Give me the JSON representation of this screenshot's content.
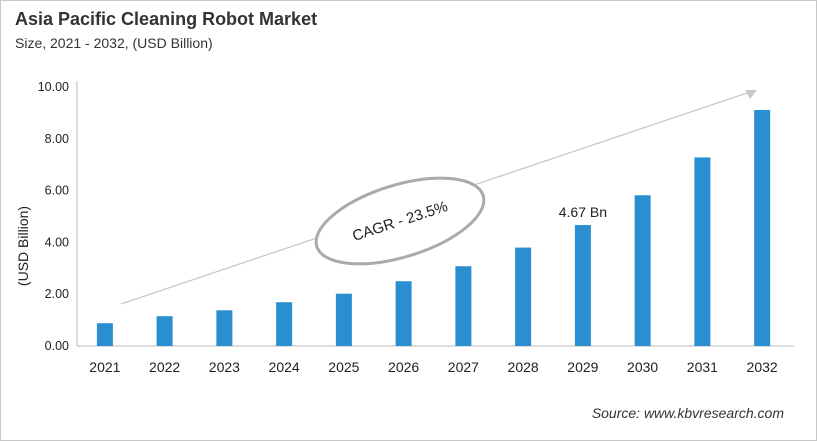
{
  "chart_data": {
    "type": "bar",
    "title": "Asia Pacific Cleaning Robot Market",
    "subtitle": "Size, 2021 - 2032, (USD Billion)",
    "xlabel": "",
    "ylabel": "(USD Billion)",
    "ylim": [
      0,
      10
    ],
    "yticks": [
      "0.00",
      "2.00",
      "4.00",
      "6.00",
      "8.00",
      "10.00"
    ],
    "categories": [
      "2021",
      "2022",
      "2023",
      "2024",
      "2025",
      "2026",
      "2027",
      "2028",
      "2029",
      "2030",
      "2031",
      "2032"
    ],
    "values": [
      0.88,
      1.15,
      1.38,
      1.69,
      2.02,
      2.5,
      3.08,
      3.8,
      4.67,
      5.82,
      7.28,
      9.11
    ],
    "data_labels": [
      {
        "category": "2029",
        "text": "4.67 Bn"
      }
    ],
    "annotation": "CAGR - 23.5%",
    "grid": false,
    "legend": "none",
    "bar_color": "#2a8fd0",
    "source": "Source: www.kbvresearch.com"
  }
}
